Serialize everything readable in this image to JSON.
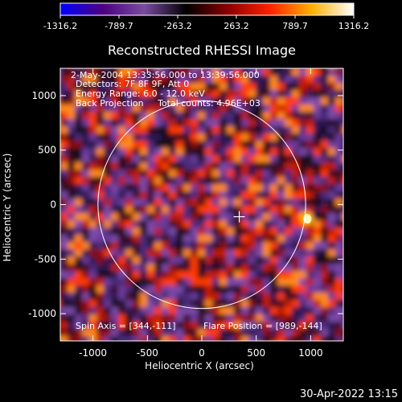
{
  "chart_data": {
    "type": "heatmap",
    "title": "Reconstructed RHESSI Image",
    "xlabel": "Heliocentric X (arcsec)",
    "ylabel": "Heliocentric Y (arcsec)",
    "xlim": [
      -1300,
      1300
    ],
    "ylim": [
      -1250,
      1250
    ],
    "xticks": [
      -1000,
      -500,
      0,
      500,
      1000
    ],
    "yticks": [
      -1000,
      -500,
      0,
      500,
      1000
    ],
    "colorbar": {
      "min": -1316.2,
      "max": 1316.2,
      "tick_labels": [
        "-1316.2",
        "-789.7",
        "-263.2",
        "263.2",
        "789.7",
        "1316.2"
      ],
      "colors": [
        "#0000ff",
        "#4b0082",
        "#7a4ba0",
        "#000000",
        "#8b0000",
        "#ff2000",
        "#ffb000",
        "#ffffff"
      ]
    },
    "info_lines": [
      "2-May-2004 13:33:56.000 to 13:39:56.000",
      "Detectors: 7F 8F 9F, Att 0",
      "Energy Range: 6.0 - 12.0 keV",
      "Back Projection     Total counts: 4.96E+03"
    ],
    "spin_axis_label": "Spin Axis = [344,-111]",
    "flare_position_label": "Flare Position = [989,-144]",
    "spin_axis": [
      344,
      -111
    ],
    "flare_position": [
      989,
      -144
    ],
    "solar_limb_radius_arcsec": 954,
    "peak_source_arcsec": [
      970,
      -130
    ]
  },
  "footer": {
    "timestamp": "30-Apr-2022 13:15"
  }
}
